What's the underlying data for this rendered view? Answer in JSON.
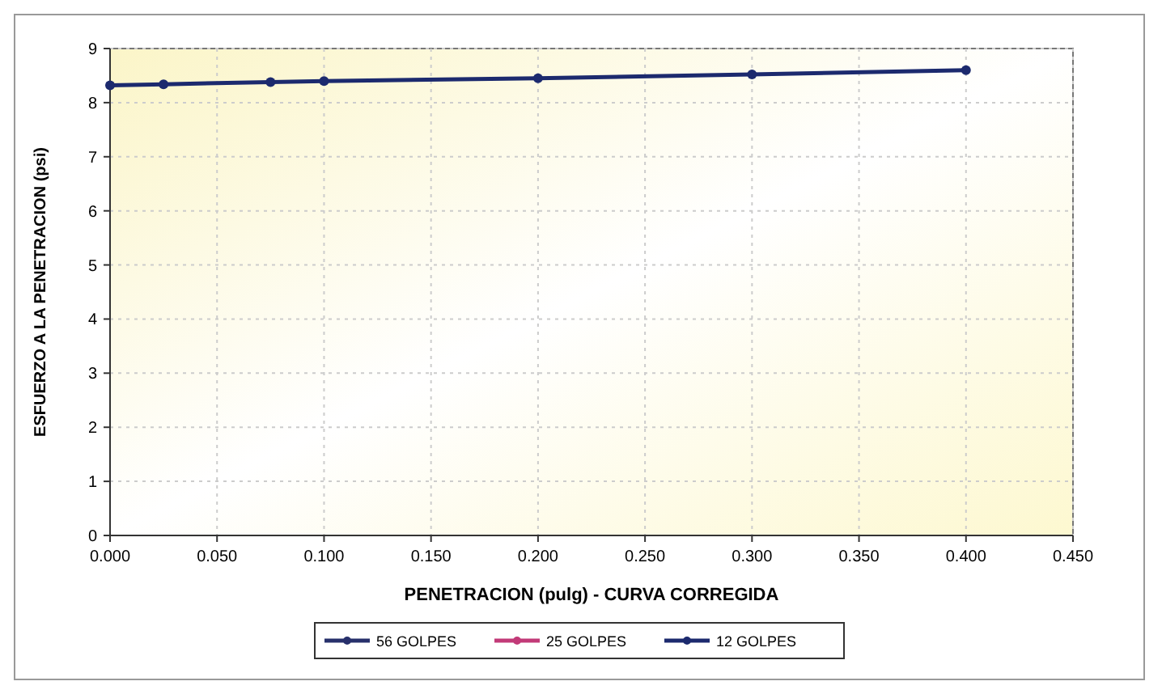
{
  "chart_data": {
    "type": "line",
    "xlabel": "PENETRACION (pulg)  - CURVA CORREGIDA",
    "ylabel": "ESFUERZO A LA PENETRACION (psi)",
    "xlim": [
      0,
      0.45
    ],
    "xticks": [
      {
        "value": 0,
        "label": "0.000"
      },
      {
        "value": 0.05,
        "label": "0.050"
      },
      {
        "value": 0.1,
        "label": "0.100"
      },
      {
        "value": 0.15,
        "label": "0.150"
      },
      {
        "value": 0.2,
        "label": "0.200"
      },
      {
        "value": 0.25,
        "label": "0.250"
      },
      {
        "value": 0.3,
        "label": "0.300"
      },
      {
        "value": 0.35,
        "label": "0.350"
      },
      {
        "value": 0.4,
        "label": "0.400"
      },
      {
        "value": 0.45,
        "label": "0.450"
      }
    ],
    "ylim": [
      0,
      9
    ],
    "yticks": [
      0,
      1,
      2,
      3,
      4,
      5,
      6,
      7,
      8,
      9
    ],
    "x": [
      0,
      0.025,
      0.075,
      0.1,
      0.2,
      0.3,
      0.4
    ],
    "series": [
      {
        "name": "56 GOLPES",
        "color": "#27306b",
        "values": [
          null,
          null,
          null,
          null,
          null,
          null,
          null
        ]
      },
      {
        "name": "25 GOLPES",
        "color": "#c23a78",
        "values": [
          null,
          null,
          null,
          null,
          null,
          null,
          null
        ]
      },
      {
        "name": "12 GOLPES",
        "color": "#1c2a6e",
        "values": [
          8.32,
          8.34,
          8.38,
          8.4,
          8.45,
          8.52,
          8.6
        ]
      }
    ],
    "grid": true,
    "legend": "bottom",
    "marker": "circle",
    "line_style": "solid"
  }
}
